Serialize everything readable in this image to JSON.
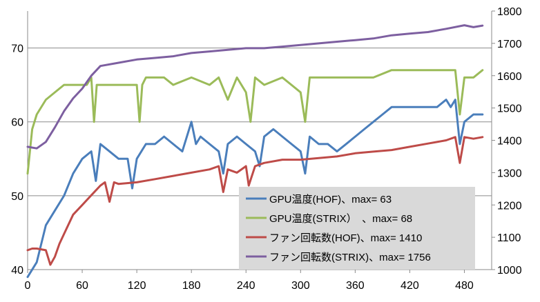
{
  "chart_data": {
    "type": "line",
    "xlim": [
      0,
      510
    ],
    "xticks": [
      0,
      60,
      120,
      180,
      240,
      300,
      360,
      420,
      480
    ],
    "y_left": {
      "ylim": [
        40,
        75
      ],
      "ticks": [
        40,
        50,
        60,
        70
      ]
    },
    "y_right": {
      "ylim": [
        1000,
        1800
      ],
      "ticks": [
        1000,
        1100,
        1200,
        1300,
        1400,
        1500,
        1600,
        1700,
        1800
      ]
    },
    "grid": "horizontal",
    "legend": {
      "position": "bottom-right",
      "entries": [
        "GPU温度(HOF)、max= 63",
        "GPU温度(STRIX）　、max= 68",
        "ファン回転数(HOF)、max=  1410",
        "ファン回転数(STRIX)、max=  1756"
      ]
    },
    "series": [
      {
        "name": "GPU温度(HOF)、max= 63",
        "axis": "left",
        "color": "#4a7ebb",
        "x": [
          0,
          10,
          20,
          30,
          40,
          50,
          60,
          70,
          75,
          80,
          90,
          100,
          110,
          115,
          120,
          130,
          140,
          150,
          160,
          170,
          180,
          185,
          190,
          200,
          210,
          215,
          220,
          230,
          240,
          250,
          255,
          260,
          270,
          280,
          290,
          300,
          305,
          310,
          320,
          330,
          340,
          350,
          360,
          370,
          380,
          390,
          400,
          410,
          420,
          430,
          440,
          450,
          460,
          465,
          470,
          475,
          480,
          490,
          500
        ],
        "y": [
          39,
          41,
          46,
          48,
          50,
          53,
          55,
          56,
          52,
          57,
          56,
          55,
          55,
          51,
          55,
          57,
          57,
          58,
          57,
          56,
          60,
          57,
          58,
          57,
          56,
          53,
          57,
          58,
          57,
          56,
          54,
          58,
          59,
          58,
          57,
          56,
          53,
          58,
          57,
          57,
          56,
          57,
          58,
          59,
          60,
          61,
          62,
          62,
          62,
          62,
          62,
          62,
          63,
          62,
          63,
          57,
          60,
          61,
          61
        ]
      },
      {
        "name": "GPU温度(STRIX）　、max= 68",
        "axis": "left",
        "color": "#9bbb59",
        "x": [
          0,
          5,
          10,
          20,
          30,
          40,
          50,
          60,
          65,
          70,
          73,
          76,
          80,
          100,
          120,
          123,
          126,
          130,
          150,
          160,
          180,
          200,
          210,
          220,
          230,
          240,
          245,
          250,
          260,
          280,
          300,
          305,
          310,
          320,
          340,
          360,
          380,
          400,
          420,
          440,
          460,
          465,
          470,
          475,
          480,
          490,
          500
        ],
        "y": [
          53,
          59,
          61,
          63,
          64,
          65,
          65,
          65,
          65,
          66,
          60,
          65,
          65,
          65,
          65,
          60,
          65,
          66,
          66,
          65,
          66,
          65,
          66,
          63,
          66,
          64,
          60,
          66,
          65,
          66,
          64,
          60,
          66,
          66,
          66,
          66,
          66,
          67,
          67,
          67,
          67,
          67,
          67,
          61,
          66,
          66,
          67
        ]
      },
      {
        "name": "ファン回転数(HOF)、max=  1410",
        "axis": "right",
        "color": "#be4b48",
        "x": [
          0,
          5,
          10,
          20,
          25,
          30,
          35,
          40,
          50,
          60,
          70,
          80,
          85,
          90,
          95,
          100,
          120,
          140,
          160,
          180,
          200,
          210,
          215,
          220,
          230,
          240,
          243,
          250,
          260,
          280,
          300,
          320,
          340,
          360,
          380,
          400,
          420,
          440,
          460,
          470,
          475,
          480,
          490,
          500
        ],
        "y": [
          1060,
          1065,
          1065,
          1060,
          1015,
          1040,
          1080,
          1110,
          1170,
          1200,
          1230,
          1260,
          1270,
          1210,
          1270,
          1265,
          1270,
          1280,
          1290,
          1300,
          1310,
          1320,
          1240,
          1310,
          1300,
          1320,
          1260,
          1320,
          1330,
          1340,
          1340,
          1345,
          1350,
          1360,
          1365,
          1370,
          1380,
          1390,
          1400,
          1410,
          1330,
          1410,
          1405,
          1410
        ]
      },
      {
        "name": "ファン回転数(STRIX)、max=  1756",
        "axis": "right",
        "color": "#7d5fa0",
        "x": [
          0,
          10,
          20,
          30,
          40,
          50,
          60,
          70,
          80,
          100,
          120,
          140,
          160,
          180,
          200,
          220,
          240,
          260,
          280,
          300,
          320,
          340,
          360,
          380,
          400,
          420,
          440,
          460,
          480,
          490,
          500
        ],
        "y": [
          1380,
          1375,
          1395,
          1440,
          1490,
          1530,
          1560,
          1600,
          1630,
          1640,
          1650,
          1655,
          1660,
          1670,
          1675,
          1680,
          1685,
          1685,
          1690,
          1695,
          1700,
          1705,
          1710,
          1715,
          1725,
          1730,
          1735,
          1745,
          1756,
          1750,
          1755
        ]
      }
    ]
  }
}
